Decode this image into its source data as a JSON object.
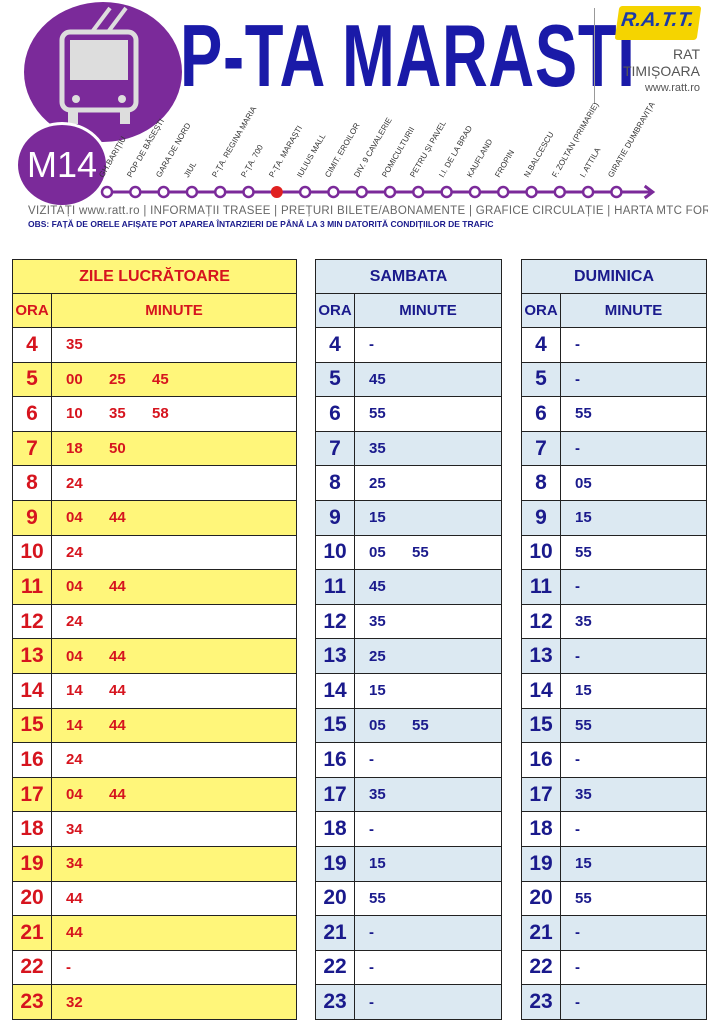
{
  "header": {
    "station": "P-TA MARASTI",
    "line": "M14",
    "operator_logo": "R.A.T.T.",
    "operator_name": "RAT",
    "city": "TIMIȘOARA",
    "website": "www.ratt.ro",
    "line_color": "#7b2a9a",
    "icon": "trolleybus-icon"
  },
  "route": {
    "stops": [
      "GH.BARIȚIU",
      "POP DE BĂSEȘTI",
      "GARA DE NORD",
      "JIUL",
      "P-ȚA. REGINA MARIA",
      "P-ȚA. 700",
      "P-ȚA. MARAȘTI",
      "IULIUS MALL",
      "CIMIT. EROILOR",
      "DIV. 9 CAVALERIE",
      "POMICULTURII",
      "PETRU ȘI PAVEL",
      "I.I. DE LA BRAD",
      "KAUFLAND",
      "FROPIN",
      "N.BALCESCU",
      "F. ZOLTAN (PRIMARIE)",
      "I. ATTILA",
      "GIRATIE DUMBRAVIȚA"
    ],
    "current_stop_index": 6
  },
  "links": "VIZITAȚI www.ratt.ro | INFORMAȚII TRASEE | PREȚURI BILETE/ABONAMENTE | GRAFICE CIRCULAȚIE | HARTA MTC   FORUM |",
  "notice": "OBS: FAȚĂ DE ORELE AFIȘATE POT APAREA ÎNTARZIERI DE PÂNĂ LA 3 MIN DATORITĂ CONDIȚIILOR DE TRAFIC",
  "schedules": [
    {
      "title": "ZILE LUCRĂTOARE",
      "col_hour": "ORA",
      "col_minutes": "MINUTE",
      "color": "#d6141e",
      "rows": [
        {
          "h": "4",
          "m": [
            "35"
          ]
        },
        {
          "h": "5",
          "m": [
            "00",
            "25",
            "45"
          ]
        },
        {
          "h": "6",
          "m": [
            "10",
            "35",
            "58"
          ]
        },
        {
          "h": "7",
          "m": [
            "18",
            "50"
          ]
        },
        {
          "h": "8",
          "m": [
            "24"
          ]
        },
        {
          "h": "9",
          "m": [
            "04",
            "44"
          ]
        },
        {
          "h": "10",
          "m": [
            "24"
          ]
        },
        {
          "h": "11",
          "m": [
            "04",
            "44"
          ]
        },
        {
          "h": "12",
          "m": [
            "24"
          ]
        },
        {
          "h": "13",
          "m": [
            "04",
            "44"
          ]
        },
        {
          "h": "14",
          "m": [
            "14",
            "44"
          ]
        },
        {
          "h": "15",
          "m": [
            "14",
            "44"
          ]
        },
        {
          "h": "16",
          "m": [
            "24"
          ]
        },
        {
          "h": "17",
          "m": [
            "04",
            "44"
          ]
        },
        {
          "h": "18",
          "m": [
            "34"
          ]
        },
        {
          "h": "19",
          "m": [
            "34"
          ]
        },
        {
          "h": "20",
          "m": [
            "44"
          ]
        },
        {
          "h": "21",
          "m": [
            "44"
          ]
        },
        {
          "h": "22",
          "m": [
            "-"
          ]
        },
        {
          "h": "23",
          "m": [
            "32"
          ]
        }
      ]
    },
    {
      "title": "SAMBATA",
      "col_hour": "ORA",
      "col_minutes": "MINUTE",
      "color": "#1a1a8c",
      "rows": [
        {
          "h": "4",
          "m": [
            "-"
          ]
        },
        {
          "h": "5",
          "m": [
            "45"
          ]
        },
        {
          "h": "6",
          "m": [
            "55"
          ]
        },
        {
          "h": "7",
          "m": [
            "35"
          ]
        },
        {
          "h": "8",
          "m": [
            "25"
          ]
        },
        {
          "h": "9",
          "m": [
            "15"
          ]
        },
        {
          "h": "10",
          "m": [
            "05",
            "55"
          ]
        },
        {
          "h": "11",
          "m": [
            "45"
          ]
        },
        {
          "h": "12",
          "m": [
            "35"
          ]
        },
        {
          "h": "13",
          "m": [
            "25"
          ]
        },
        {
          "h": "14",
          "m": [
            "15"
          ]
        },
        {
          "h": "15",
          "m": [
            "05",
            "55"
          ]
        },
        {
          "h": "16",
          "m": [
            "-"
          ]
        },
        {
          "h": "17",
          "m": [
            "35"
          ]
        },
        {
          "h": "18",
          "m": [
            "-"
          ]
        },
        {
          "h": "19",
          "m": [
            "15"
          ]
        },
        {
          "h": "20",
          "m": [
            "55"
          ]
        },
        {
          "h": "21",
          "m": [
            "-"
          ]
        },
        {
          "h": "22",
          "m": [
            "-"
          ]
        },
        {
          "h": "23",
          "m": [
            "-"
          ]
        }
      ]
    },
    {
      "title": "DUMINICA",
      "col_hour": "ORA",
      "col_minutes": "MINUTE",
      "color": "#1a1a8c",
      "rows": [
        {
          "h": "4",
          "m": [
            "-"
          ]
        },
        {
          "h": "5",
          "m": [
            "-"
          ]
        },
        {
          "h": "6",
          "m": [
            "55"
          ]
        },
        {
          "h": "7",
          "m": [
            "-"
          ]
        },
        {
          "h": "8",
          "m": [
            "05"
          ]
        },
        {
          "h": "9",
          "m": [
            "15"
          ]
        },
        {
          "h": "10",
          "m": [
            "55"
          ]
        },
        {
          "h": "11",
          "m": [
            "-"
          ]
        },
        {
          "h": "12",
          "m": [
            "35"
          ]
        },
        {
          "h": "13",
          "m": [
            "-"
          ]
        },
        {
          "h": "14",
          "m": [
            "15"
          ]
        },
        {
          "h": "15",
          "m": [
            "55"
          ]
        },
        {
          "h": "16",
          "m": [
            "-"
          ]
        },
        {
          "h": "17",
          "m": [
            "35"
          ]
        },
        {
          "h": "18",
          "m": [
            "-"
          ]
        },
        {
          "h": "19",
          "m": [
            "15"
          ]
        },
        {
          "h": "20",
          "m": [
            "55"
          ]
        },
        {
          "h": "21",
          "m": [
            "-"
          ]
        },
        {
          "h": "22",
          "m": [
            "-"
          ]
        },
        {
          "h": "23",
          "m": [
            "-"
          ]
        }
      ]
    }
  ]
}
